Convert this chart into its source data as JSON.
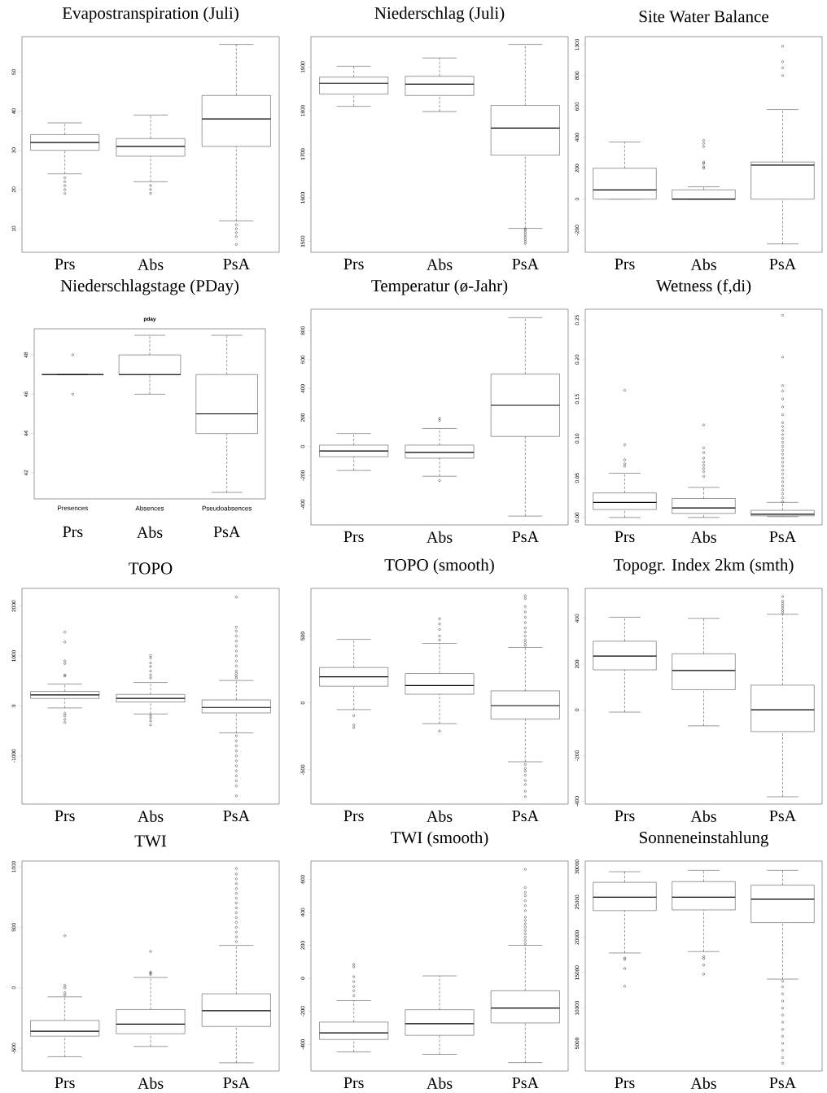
{
  "chart_data": [
    {
      "type": "box",
      "title": "Evapostranspiration (Juli)",
      "categories": [
        "Prs",
        "Abs",
        "PsA"
      ],
      "ylim": [
        4,
        59
      ],
      "yticks": [
        10,
        20,
        30,
        40,
        50
      ],
      "boxes": [
        {
          "low": 24,
          "q1": 30,
          "median": 32,
          "q3": 34,
          "high": 37,
          "outliers": [
            19,
            20,
            21,
            22,
            23
          ]
        },
        {
          "low": 22,
          "q1": 28.5,
          "median": 31,
          "q3": 33,
          "high": 39,
          "outliers": [
            19,
            20,
            21
          ]
        },
        {
          "low": 12,
          "q1": 31,
          "median": 38,
          "q3": 44,
          "high": 57,
          "outliers": [
            6,
            8,
            9,
            10,
            11
          ]
        }
      ]
    },
    {
      "type": "box",
      "title": "Niederschlag (Juli)",
      "categories": [
        "Prs",
        "Abs",
        "PsA"
      ],
      "ylim": [
        1475,
        1970
      ],
      "yticks": [
        1500,
        1600,
        1700,
        1800,
        1900
      ],
      "boxes": [
        {
          "low": 1810,
          "q1": 1838,
          "median": 1863,
          "q3": 1877,
          "high": 1902
        },
        {
          "low": 1798,
          "q1": 1835,
          "median": 1861,
          "q3": 1879,
          "high": 1921
        },
        {
          "low": 1530,
          "q1": 1698,
          "median": 1760,
          "q3": 1812,
          "high": 1952,
          "outliers": [
            1495,
            1500,
            1505,
            1510,
            1515,
            1520,
            1525,
            1528
          ]
        }
      ]
    },
    {
      "type": "box",
      "title": "Site Water Balance",
      "categories": [
        "Prs",
        "Abs",
        "PsA"
      ],
      "ylim": [
        -344,
        1052
      ],
      "yticks": [
        -200,
        0,
        200,
        400,
        600,
        800,
        1000
      ],
      "boxes": [
        {
          "low": 0,
          "q1": 0,
          "median": 60,
          "q3": 200,
          "high": 370
        },
        {
          "low": 0,
          "q1": 0,
          "median": 0,
          "q3": 60,
          "high": 80,
          "outliers": [
            200,
            210,
            230,
            240,
            340,
            360,
            380
          ]
        },
        {
          "low": -290,
          "q1": 0,
          "median": 220,
          "q3": 240,
          "high": 580,
          "outliers": [
            800,
            850,
            890,
            990
          ]
        }
      ]
    },
    {
      "type": "box",
      "title": "Niederschlagstage (PDay)",
      "subtitle": "pday",
      "annotations": [
        "Presences",
        "Absences",
        "Pseudoabsences"
      ],
      "categories": [
        "Prs",
        "Abs",
        "PsA"
      ],
      "ylim": [
        40.67,
        49.33
      ],
      "yticks": [
        42,
        44,
        46,
        48
      ],
      "boxes": [
        {
          "low": 47,
          "q1": 47,
          "median": 47,
          "q3": 47,
          "high": 47,
          "outliers": [
            46,
            48
          ]
        },
        {
          "low": 46,
          "q1": 47,
          "median": 47,
          "q3": 48,
          "high": 49
        },
        {
          "low": 41,
          "q1": 44,
          "median": 45,
          "q3": 47,
          "high": 49
        }
      ]
    },
    {
      "type": "box",
      "title": "Temperatur (ø-Jahr)",
      "categories": [
        "Prs",
        "Abs",
        "PsA"
      ],
      "ylim": [
        -541,
        948
      ],
      "yticks": [
        -400,
        -200,
        0,
        200,
        400,
        600,
        800
      ],
      "boxes": [
        {
          "low": -165,
          "q1": -70,
          "median": -30,
          "q3": 10,
          "high": 90
        },
        {
          "low": -205,
          "q1": -80,
          "median": -40,
          "q3": 10,
          "high": 125,
          "outliers": [
            -235,
            180,
            195
          ]
        },
        {
          "low": -480,
          "q1": 70,
          "median": 285,
          "q3": 500,
          "high": 890
        }
      ]
    },
    {
      "type": "box",
      "title": "Wetness (f,di)",
      "categories": [
        "Prs",
        "Abs",
        "PsA"
      ],
      "ylim": [
        -0.0095,
        0.2636
      ],
      "yticks": [
        {
          "value": 0,
          "label": "0.00"
        },
        0.05,
        {
          "value": 0.1,
          "label": "0.10"
        },
        0.15,
        {
          "value": 0.2,
          "label": "0.20"
        },
        0.25
      ],
      "boxes": [
        {
          "low": 0,
          "q1": 0.01,
          "median": 0.019,
          "q3": 0.031,
          "high": 0.056,
          "outliers": [
            0.065,
            0.068,
            0.073,
            0.092,
            0.161
          ]
        },
        {
          "low": 0,
          "q1": 0.005,
          "median": 0.012,
          "q3": 0.024,
          "high": 0.038,
          "outliers": [
            0.052,
            0.058,
            0.062,
            0.066,
            0.07,
            0.075,
            0.082,
            0.088,
            0.117
          ]
        },
        {
          "low": 0.001,
          "q1": 0.002,
          "median": 0.004,
          "q3": 0.009,
          "high": 0.019,
          "outliers": [
            0.02,
            0.025,
            0.03,
            0.035,
            0.04,
            0.045,
            0.05,
            0.055,
            0.06,
            0.065,
            0.07,
            0.075,
            0.08,
            0.085,
            0.09,
            0.095,
            0.1,
            0.105,
            0.11,
            0.115,
            0.12,
            0.13,
            0.14,
            0.15,
            0.16,
            0.167,
            0.203,
            0.256
          ]
        }
      ]
    },
    {
      "type": "box",
      "title": "TOPO",
      "categories": [
        "Prs",
        "Abs",
        "PsA"
      ],
      "ylim": [
        -1965,
        2354
      ],
      "yticks": [
        -1000,
        0,
        1000,
        2000
      ],
      "boxes": [
        {
          "low": -40,
          "q1": 150,
          "median": 220,
          "q3": 290,
          "high": 440,
          "outliers": [
            -330,
            -270,
            -200,
            -150,
            600,
            620,
            850,
            900,
            1280,
            1480
          ]
        },
        {
          "low": -160,
          "q1": 80,
          "median": 150,
          "q3": 230,
          "high": 470,
          "outliers": [
            -380,
            -300,
            -240,
            -190,
            560,
            620,
            700,
            790,
            860,
            960,
            1010
          ]
        },
        {
          "low": -540,
          "q1": -140,
          "median": -30,
          "q3": 120,
          "high": 510,
          "outliers": [
            -1800,
            -1600,
            -1500,
            -1400,
            -1300,
            -1200,
            -1100,
            -1000,
            -900,
            -800,
            -700,
            -600,
            560,
            600,
            650,
            700,
            800,
            900,
            1000,
            1100,
            1200,
            1300,
            1400,
            1500,
            1580,
            2180
          ]
        }
      ]
    },
    {
      "type": "box",
      "title": "TOPO (smooth)",
      "categories": [
        "Prs",
        "Abs",
        "PsA"
      ],
      "ylim": [
        -756,
        856
      ],
      "yticks": [
        -500,
        0,
        500
      ],
      "boxes": [
        {
          "low": -50,
          "q1": 125,
          "median": 195,
          "q3": 265,
          "high": 475,
          "outliers": [
            -185,
            -165,
            -95
          ]
        },
        {
          "low": -155,
          "q1": 65,
          "median": 130,
          "q3": 220,
          "high": 445,
          "outliers": [
            -210,
            470,
            500,
            550,
            590,
            630
          ]
        },
        {
          "low": -440,
          "q1": -120,
          "median": -20,
          "q3": 90,
          "high": 415,
          "outliers": [
            -700,
            -660,
            -610,
            -580,
            -540,
            -510,
            -490,
            -460,
            430,
            450,
            470,
            500,
            530,
            560,
            600,
            640,
            680,
            720,
            780,
            800
          ]
        }
      ]
    },
    {
      "type": "box",
      "title": "Topogr. Index 2km (smth)",
      "categories": [
        "Prs",
        "Abs",
        "PsA"
      ],
      "ylim": [
        -412,
        531
      ],
      "yticks": [
        -400,
        -200,
        0,
        200,
        400
      ],
      "boxes": [
        {
          "low": -10,
          "q1": 175,
          "median": 235,
          "q3": 300,
          "high": 405
        },
        {
          "low": -70,
          "q1": 88,
          "median": 172,
          "q3": 245,
          "high": 400
        },
        {
          "low": -380,
          "q1": -95,
          "median": 0,
          "q3": 108,
          "high": 418,
          "outliers": [
            425,
            435,
            445,
            455,
            465,
            475,
            495
          ]
        }
      ]
    },
    {
      "type": "box",
      "title": "TWI",
      "categories": [
        "Prs",
        "Abs",
        "PsA"
      ],
      "ylim": [
        -688,
        1047
      ],
      "yticks": [
        -500,
        0,
        500,
        1000
      ],
      "boxes": [
        {
          "low": -570,
          "q1": -400,
          "median": -360,
          "q3": -270,
          "high": -75,
          "outliers": [
            -60,
            -40,
            0,
            20,
            430
          ]
        },
        {
          "low": -485,
          "q1": -380,
          "median": -300,
          "q3": -180,
          "high": 85,
          "outliers": [
            110,
            120,
            130,
            300
          ]
        },
        {
          "low": -620,
          "q1": -320,
          "median": -190,
          "q3": -50,
          "high": 350,
          "outliers": [
            380,
            420,
            460,
            500,
            540,
            580,
            620,
            660,
            700,
            740,
            780,
            820,
            860,
            900,
            940,
            985
          ]
        }
      ]
    },
    {
      "type": "box",
      "title": "TWI (smooth)",
      "categories": [
        "Prs",
        "Abs",
        "PsA"
      ],
      "ylim": [
        -561,
        710
      ],
      "yticks": [
        -400,
        -200,
        0,
        200,
        400,
        600
      ],
      "boxes": [
        {
          "low": -445,
          "q1": -370,
          "median": -330,
          "q3": -265,
          "high": -135,
          "outliers": [
            -105,
            -75,
            -50,
            -20,
            10,
            70,
            85
          ]
        },
        {
          "low": -460,
          "q1": -345,
          "median": -275,
          "q3": -190,
          "high": 15
        },
        {
          "low": -510,
          "q1": -270,
          "median": -180,
          "q3": -75,
          "high": 200,
          "outliers": [
            210,
            230,
            250,
            270,
            290,
            310,
            330,
            350,
            370,
            410,
            440,
            470,
            500,
            520,
            550,
            660
          ]
        }
      ]
    },
    {
      "type": "box",
      "title": "Sonneneinstahlung",
      "categories": [
        "Prs",
        "Abs",
        "PsA"
      ],
      "ylim": [
        1091,
        30811
      ],
      "yticks": [
        5000,
        10000,
        15000,
        20000,
        25000,
        30000
      ],
      "boxes": [
        {
          "low": 17800,
          "q1": 23800,
          "median": 25700,
          "q3": 27800,
          "high": 29300,
          "outliers": [
            13100,
            15600,
            16900,
            17100
          ]
        },
        {
          "low": 18000,
          "q1": 23900,
          "median": 25700,
          "q3": 27900,
          "high": 29500,
          "outliers": [
            14800,
            16100,
            17000,
            17300
          ]
        },
        {
          "low": 14100,
          "q1": 22100,
          "median": 25400,
          "q3": 27400,
          "high": 29500,
          "outliers": [
            2200,
            3000,
            4000,
            5000,
            6000,
            7000,
            8000,
            9000,
            10000,
            11000,
            12000,
            13000,
            13800
          ]
        }
      ]
    }
  ]
}
